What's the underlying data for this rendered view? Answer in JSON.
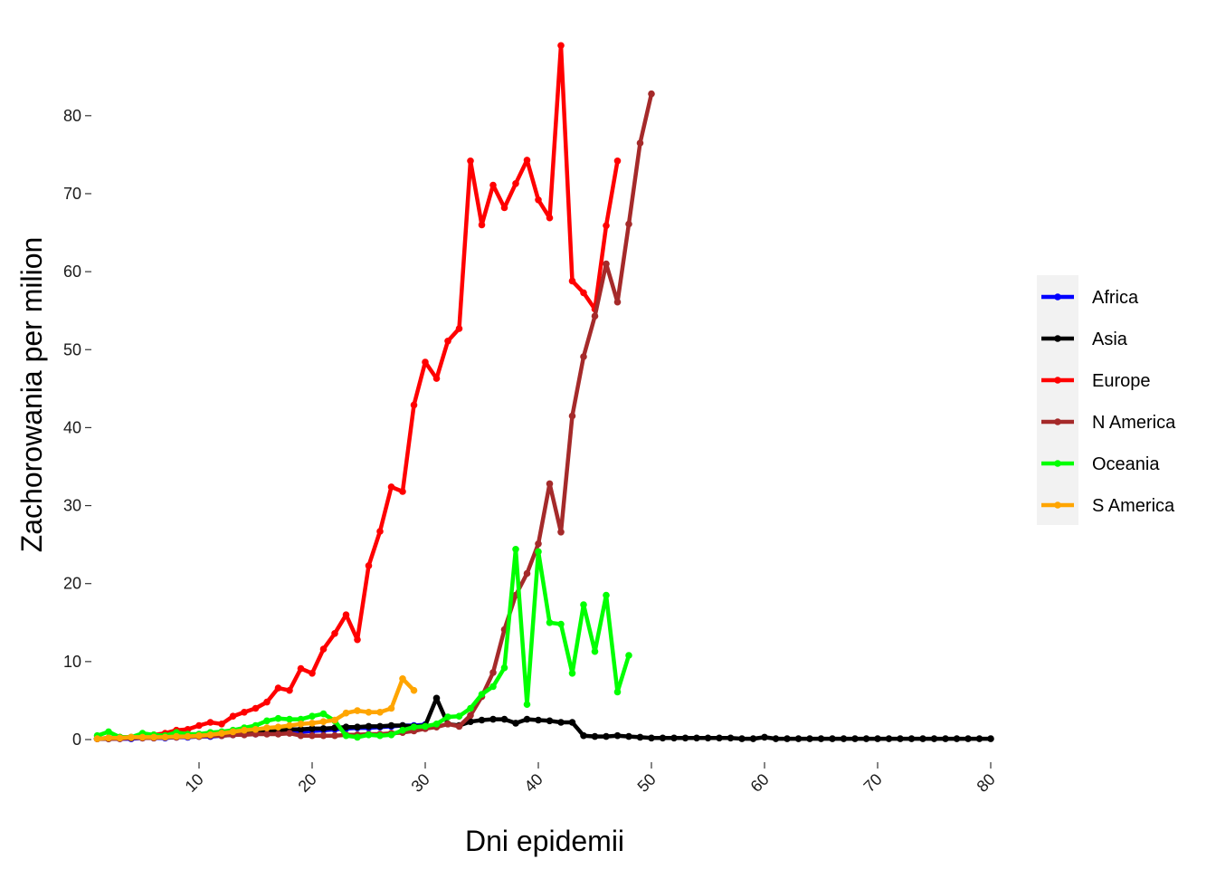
{
  "chart_data": {
    "type": "line",
    "xlabel": "Dni epidemii",
    "ylabel": "Zachorowania per milion",
    "xlim": [
      0,
      80
    ],
    "ylim": [
      -3,
      90
    ],
    "xticks": [
      10,
      20,
      30,
      40,
      50,
      60,
      70,
      80
    ],
    "yticks": [
      0,
      10,
      20,
      30,
      40,
      50,
      60,
      70,
      80
    ],
    "grid": false,
    "legend_position": "right",
    "series": [
      {
        "name": "Africa",
        "color": "#0000ff",
        "x": [
          1,
          2,
          3,
          4,
          5,
          6,
          7,
          8,
          9,
          10,
          11,
          12,
          13,
          14,
          15,
          16,
          17,
          18,
          19,
          20,
          21,
          22,
          23,
          24,
          25,
          26,
          27,
          28,
          29,
          30
        ],
        "y": [
          0.1,
          0.1,
          0.1,
          0.1,
          0.2,
          0.2,
          0.2,
          0.3,
          0.3,
          0.4,
          0.4,
          0.5,
          0.6,
          0.7,
          0.7,
          0.8,
          0.9,
          1.0,
          1.0,
          1.1,
          1.2,
          1.3,
          1.4,
          1.5,
          1.5,
          1.6,
          1.7,
          1.8,
          1.8,
          1.9
        ]
      },
      {
        "name": "Asia",
        "color": "#000000",
        "x": [
          1,
          2,
          3,
          4,
          5,
          6,
          7,
          8,
          9,
          10,
          11,
          12,
          13,
          14,
          15,
          16,
          17,
          18,
          19,
          20,
          21,
          22,
          23,
          24,
          25,
          26,
          27,
          28,
          29,
          30,
          31,
          32,
          33,
          34,
          35,
          36,
          37,
          38,
          39,
          40,
          41,
          42,
          43,
          44,
          45,
          46,
          47,
          48,
          49,
          50,
          51,
          52,
          53,
          54,
          55,
          56,
          57,
          58,
          59,
          60,
          61,
          62,
          63,
          64,
          65,
          66,
          67,
          68,
          69,
          70,
          71,
          72,
          73,
          74,
          75,
          76,
          77,
          78,
          79,
          80
        ],
        "y": [
          0.1,
          0.1,
          0.2,
          0.2,
          0.3,
          0.3,
          0.4,
          0.5,
          0.5,
          0.6,
          0.7,
          0.8,
          0.9,
          1.0,
          1.0,
          1.1,
          1.2,
          1.3,
          1.3,
          1.4,
          1.4,
          1.5,
          1.6,
          1.6,
          1.7,
          1.7,
          1.8,
          1.8,
          1.7,
          1.8,
          5.3,
          2.0,
          1.8,
          2.3,
          2.5,
          2.6,
          2.6,
          2.1,
          2.6,
          2.5,
          2.4,
          2.2,
          2.2,
          0.5,
          0.4,
          0.4,
          0.5,
          0.4,
          0.3,
          0.2,
          0.2,
          0.2,
          0.2,
          0.2,
          0.2,
          0.2,
          0.2,
          0.1,
          0.1,
          0.3,
          0.1,
          0.1,
          0.1,
          0.1,
          0.1,
          0.1,
          0.1,
          0.1,
          0.1,
          0.1,
          0.1,
          0.1,
          0.1,
          0.1,
          0.1,
          0.1,
          0.1,
          0.1,
          0.1,
          0.1
        ]
      },
      {
        "name": "Europe",
        "color": "#ff0000",
        "x": [
          1,
          2,
          3,
          4,
          5,
          6,
          7,
          8,
          9,
          10,
          11,
          12,
          13,
          14,
          15,
          16,
          17,
          18,
          19,
          20,
          21,
          22,
          23,
          24,
          25,
          26,
          27,
          28,
          29,
          30,
          31,
          32,
          33,
          34,
          35,
          36,
          37,
          38,
          39,
          40,
          41,
          42,
          43,
          44,
          45,
          46,
          47
        ],
        "y": [
          0.1,
          0.2,
          0.3,
          0.3,
          0.5,
          0.6,
          0.8,
          1.2,
          1.3,
          1.8,
          2.2,
          2.0,
          3.0,
          3.5,
          4.0,
          4.8,
          6.6,
          6.3,
          9.1,
          8.5,
          11.6,
          13.6,
          16.0,
          12.8,
          22.3,
          26.7,
          32.4,
          31.8,
          42.9,
          48.4,
          46.3,
          51.1,
          52.7,
          74.2,
          66.0,
          71.1,
          68.2,
          71.3,
          74.3,
          69.2,
          66.9,
          89.0,
          58.8,
          57.3,
          55.2,
          65.9,
          74.2
        ]
      },
      {
        "name": "N America",
        "color": "#a52a2a",
        "x": [
          1,
          2,
          3,
          4,
          5,
          6,
          7,
          8,
          9,
          10,
          11,
          12,
          13,
          14,
          15,
          16,
          17,
          18,
          19,
          20,
          21,
          22,
          23,
          24,
          25,
          26,
          27,
          28,
          29,
          30,
          31,
          32,
          33,
          34,
          35,
          36,
          37,
          38,
          39,
          40,
          41,
          42,
          43,
          44,
          45,
          46,
          47,
          48,
          49,
          50
        ],
        "y": [
          0.1,
          0.1,
          0.1,
          0.2,
          0.2,
          0.2,
          0.3,
          0.3,
          0.4,
          0.4,
          0.5,
          0.5,
          0.6,
          0.6,
          0.7,
          0.7,
          0.7,
          0.8,
          0.5,
          0.5,
          0.5,
          0.5,
          0.6,
          0.6,
          0.7,
          0.7,
          0.8,
          0.9,
          1.1,
          1.4,
          1.6,
          2.0,
          1.7,
          3.1,
          5.5,
          8.6,
          14.1,
          18.5,
          21.3,
          25.1,
          32.8,
          26.6,
          41.5,
          49.1,
          54.3,
          61.0,
          56.1,
          66.1,
          76.5,
          82.8
        ]
      },
      {
        "name": "Oceania",
        "color": "#00ff00",
        "x": [
          1,
          2,
          3,
          4,
          5,
          6,
          7,
          8,
          9,
          10,
          11,
          12,
          13,
          14,
          15,
          16,
          17,
          18,
          19,
          20,
          21,
          22,
          23,
          24,
          25,
          26,
          27,
          28,
          29,
          30,
          31,
          32,
          33,
          34,
          35,
          36,
          37,
          38,
          39,
          40,
          41,
          42,
          43,
          44,
          45,
          46,
          47,
          48
        ],
        "y": [
          0.5,
          1.0,
          0.3,
          0.3,
          0.8,
          0.6,
          0.5,
          0.9,
          0.7,
          0.7,
          0.9,
          1.0,
          1.2,
          1.5,
          1.8,
          2.4,
          2.7,
          2.6,
          2.6,
          3.0,
          3.3,
          2.4,
          0.5,
          0.3,
          0.6,
          0.5,
          0.6,
          1.2,
          1.6,
          1.7,
          2.0,
          2.9,
          3.0,
          4.0,
          5.8,
          6.8,
          9.2,
          24.4,
          4.5,
          24.1,
          15.0,
          14.8,
          8.5,
          17.3,
          11.3,
          18.5,
          6.1,
          10.8
        ]
      },
      {
        "name": "S America",
        "color": "#ffa500",
        "x": [
          1,
          2,
          3,
          4,
          5,
          6,
          7,
          8,
          9,
          10,
          11,
          12,
          13,
          14,
          15,
          16,
          17,
          18,
          19,
          20,
          21,
          22,
          23,
          24,
          25,
          26,
          27,
          28,
          29
        ],
        "y": [
          0.1,
          0.2,
          0.2,
          0.3,
          0.3,
          0.3,
          0.3,
          0.4,
          0.4,
          0.5,
          0.6,
          0.8,
          1.0,
          1.2,
          1.3,
          1.5,
          1.6,
          1.8,
          2.0,
          2.1,
          2.3,
          2.5,
          3.4,
          3.7,
          3.5,
          3.5,
          4.0,
          7.8,
          6.3
        ]
      }
    ]
  }
}
